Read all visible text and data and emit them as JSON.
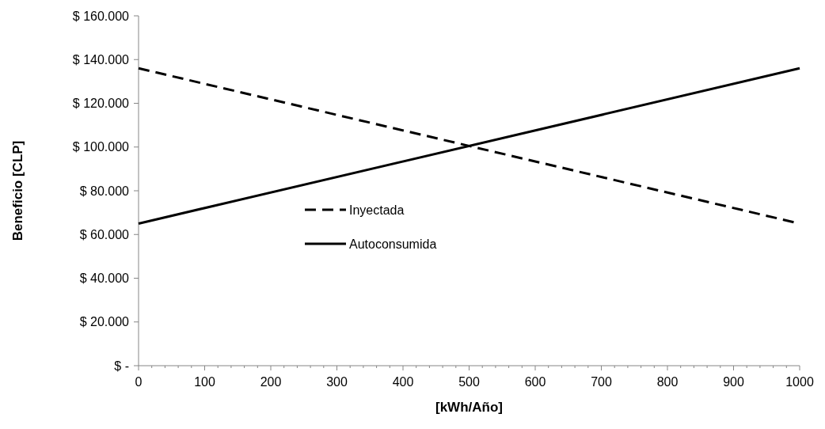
{
  "chart_data": {
    "type": "line",
    "xlabel": "[kWh/Año]",
    "ylabel": "Beneficio [CLP]",
    "x": [
      0,
      1000
    ],
    "series": [
      {
        "name": "Inyectada",
        "color": "#000000",
        "values": [
          136000,
          65000
        ],
        "line_style": "dashed"
      },
      {
        "name": "Autoconsumida",
        "color": "#000000",
        "values": [
          65000,
          136000
        ],
        "line_style": "solid"
      }
    ],
    "xlim": [
      0,
      1000
    ],
    "xticks": [
      0,
      100,
      200,
      300,
      400,
      500,
      600,
      700,
      800,
      900,
      1000
    ],
    "ylim": [
      0,
      160000
    ],
    "yticks": [
      {
        "value": 0,
        "label": "$ -"
      },
      {
        "value": 20000,
        "label": "$ 20.000"
      },
      {
        "value": 40000,
        "label": "$ 40.000"
      },
      {
        "value": 60000,
        "label": "$ 60.000"
      },
      {
        "value": 80000,
        "label": "$ 80.000"
      },
      {
        "value": 100000,
        "label": "$ 100.000"
      },
      {
        "value": 120000,
        "label": "$ 120.000"
      },
      {
        "value": 140000,
        "label": "$ 140.000"
      },
      {
        "value": 160000,
        "label": "$ 160.000"
      }
    ],
    "grid": false,
    "legend": "center"
  }
}
